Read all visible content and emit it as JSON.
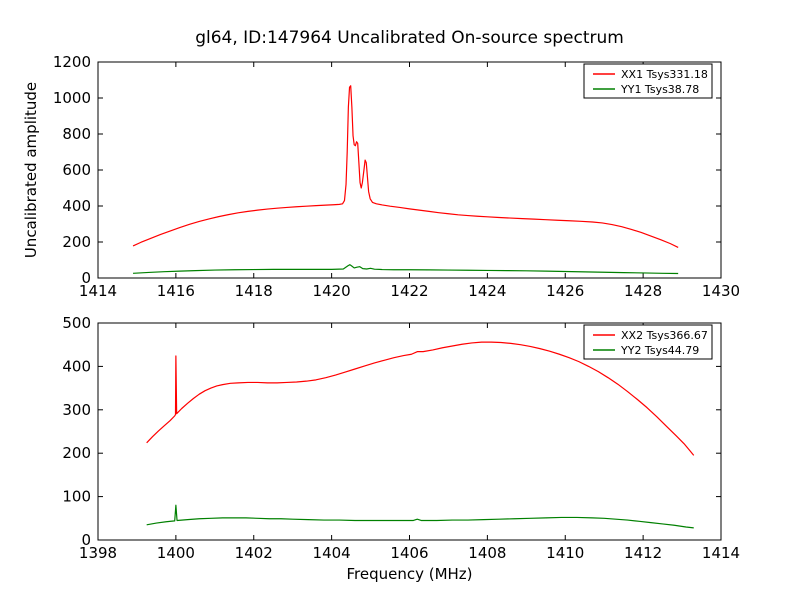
{
  "figure": {
    "title": "gl64, ID:147964 Uncalibrated On-source spectrum",
    "xlabel": "Frequency (MHz)",
    "ylabel": "Uncalibrated amplitude",
    "background_color": "#ffffff",
    "axis_color": "#000000",
    "accent_red": "#ff0000",
    "accent_green": "#008000"
  },
  "chart_data": [
    {
      "type": "line",
      "title": "",
      "xlabel": "",
      "ylabel": "Uncalibrated amplitude",
      "xlim": [
        1414,
        1430
      ],
      "ylim": [
        0,
        1200
      ],
      "xticks": [
        1414,
        1416,
        1418,
        1420,
        1422,
        1424,
        1426,
        1428,
        1430
      ],
      "yticks": [
        0,
        200,
        400,
        600,
        800,
        1000,
        1200
      ],
      "grid": false,
      "legend_position": "upper right",
      "series": [
        {
          "name": "XX1 Tsys331.18",
          "color": "#ff0000",
          "points": [
            [
              1414.9,
              178
            ],
            [
              1415.1,
              198
            ],
            [
              1415.35,
              220
            ],
            [
              1415.6,
              241
            ],
            [
              1415.85,
              261
            ],
            [
              1416.1,
              280
            ],
            [
              1416.35,
              298
            ],
            [
              1416.6,
              314
            ],
            [
              1416.85,
              328
            ],
            [
              1417.1,
              341
            ],
            [
              1417.35,
              352
            ],
            [
              1417.6,
              362
            ],
            [
              1417.85,
              370
            ],
            [
              1418.1,
              377
            ],
            [
              1418.35,
              383
            ],
            [
              1418.6,
              388
            ],
            [
              1418.85,
              392
            ],
            [
              1419.1,
              396
            ],
            [
              1419.35,
              399
            ],
            [
              1419.6,
              402
            ],
            [
              1419.85,
              405
            ],
            [
              1420.05,
              407
            ],
            [
              1420.2,
              409
            ],
            [
              1420.28,
              412
            ],
            [
              1420.33,
              430
            ],
            [
              1420.37,
              520
            ],
            [
              1420.4,
              700
            ],
            [
              1420.43,
              950
            ],
            [
              1420.46,
              1060
            ],
            [
              1420.49,
              1068
            ],
            [
              1420.52,
              950
            ],
            [
              1420.55,
              790
            ],
            [
              1420.58,
              740
            ],
            [
              1420.61,
              735
            ],
            [
              1420.64,
              757
            ],
            [
              1420.67,
              748
            ],
            [
              1420.7,
              640
            ],
            [
              1420.73,
              530
            ],
            [
              1420.76,
              500
            ],
            [
              1420.79,
              530
            ],
            [
              1420.83,
              600
            ],
            [
              1420.86,
              655
            ],
            [
              1420.89,
              640
            ],
            [
              1420.92,
              560
            ],
            [
              1420.95,
              480
            ],
            [
              1420.99,
              440
            ],
            [
              1421.05,
              420
            ],
            [
              1421.15,
              412
            ],
            [
              1421.3,
              406
            ],
            [
              1421.5,
              399
            ],
            [
              1421.75,
              392
            ],
            [
              1422.0,
              384
            ],
            [
              1422.25,
              377
            ],
            [
              1422.5,
              370
            ],
            [
              1422.75,
              363
            ],
            [
              1423.0,
              357
            ],
            [
              1423.25,
              351
            ],
            [
              1423.5,
              347
            ],
            [
              1423.75,
              343
            ],
            [
              1424.0,
              340
            ],
            [
              1424.3,
              336
            ],
            [
              1424.6,
              333
            ],
            [
              1424.9,
              330
            ],
            [
              1425.2,
              327
            ],
            [
              1425.5,
              324
            ],
            [
              1425.8,
              321
            ],
            [
              1426.1,
              318
            ],
            [
              1426.4,
              315
            ],
            [
              1426.7,
              311
            ],
            [
              1426.95,
              306
            ],
            [
              1427.2,
              297
            ],
            [
              1427.45,
              285
            ],
            [
              1427.7,
              270
            ],
            [
              1427.95,
              253
            ],
            [
              1428.2,
              233
            ],
            [
              1428.45,
              213
            ],
            [
              1428.7,
              191
            ],
            [
              1428.9,
              170
            ]
          ]
        },
        {
          "name": "YY1 Tsys38.78",
          "color": "#008000",
          "points": [
            [
              1414.9,
              26
            ],
            [
              1415.3,
              31
            ],
            [
              1415.7,
              35
            ],
            [
              1416.1,
              38
            ],
            [
              1416.5,
              41
            ],
            [
              1417.0,
              44
            ],
            [
              1417.5,
              46
            ],
            [
              1418.0,
              47
            ],
            [
              1418.5,
              48
            ],
            [
              1419.0,
              48
            ],
            [
              1419.5,
              48
            ],
            [
              1420.0,
              48
            ],
            [
              1420.3,
              50
            ],
            [
              1420.42,
              68
            ],
            [
              1420.47,
              74
            ],
            [
              1420.52,
              66
            ],
            [
              1420.58,
              56
            ],
            [
              1420.65,
              60
            ],
            [
              1420.72,
              63
            ],
            [
              1420.8,
              52
            ],
            [
              1420.9,
              50
            ],
            [
              1421.0,
              54
            ],
            [
              1421.1,
              49
            ],
            [
              1421.3,
              47
            ],
            [
              1421.6,
              46
            ],
            [
              1422.0,
              46
            ],
            [
              1422.5,
              45
            ],
            [
              1423.0,
              44
            ],
            [
              1423.5,
              43
            ],
            [
              1424.0,
              42
            ],
            [
              1424.5,
              41
            ],
            [
              1425.0,
              40
            ],
            [
              1425.5,
              38
            ],
            [
              1426.0,
              36
            ],
            [
              1426.5,
              34
            ],
            [
              1427.0,
              32
            ],
            [
              1427.5,
              30
            ],
            [
              1428.0,
              28
            ],
            [
              1428.5,
              26
            ],
            [
              1428.9,
              25
            ]
          ]
        }
      ]
    },
    {
      "type": "line",
      "title": "",
      "xlabel": "Frequency (MHz)",
      "ylabel": "",
      "xlim": [
        1398,
        1414
      ],
      "ylim": [
        0,
        500
      ],
      "xticks": [
        1398,
        1400,
        1402,
        1404,
        1406,
        1408,
        1410,
        1412,
        1414
      ],
      "yticks": [
        0,
        100,
        200,
        300,
        400,
        500
      ],
      "grid": false,
      "legend_position": "upper right",
      "series": [
        {
          "name": "XX2 Tsys366.67",
          "color": "#ff0000",
          "points": [
            [
              1399.25,
              224
            ],
            [
              1399.4,
              238
            ],
            [
              1399.55,
              251
            ],
            [
              1399.7,
              263
            ],
            [
              1399.85,
              275
            ],
            [
              1399.97,
              286
            ],
            [
              1399.99,
              289
            ],
            [
              1400.0,
              424
            ],
            [
              1400.02,
              291
            ],
            [
              1400.15,
              303
            ],
            [
              1400.3,
              315
            ],
            [
              1400.45,
              326
            ],
            [
              1400.6,
              336
            ],
            [
              1400.75,
              344
            ],
            [
              1400.9,
              350
            ],
            [
              1401.05,
              355
            ],
            [
              1401.2,
              358
            ],
            [
              1401.4,
              361
            ],
            [
              1401.6,
              362
            ],
            [
              1401.85,
              363
            ],
            [
              1402.1,
              363
            ],
            [
              1402.35,
              362
            ],
            [
              1402.6,
              362
            ],
            [
              1402.85,
              363
            ],
            [
              1403.1,
              364
            ],
            [
              1403.35,
              366
            ],
            [
              1403.6,
              369
            ],
            [
              1403.85,
              374
            ],
            [
              1404.1,
              380
            ],
            [
              1404.35,
              387
            ],
            [
              1404.6,
              394
            ],
            [
              1404.85,
              401
            ],
            [
              1405.1,
              408
            ],
            [
              1405.35,
              414
            ],
            [
              1405.6,
              420
            ],
            [
              1405.85,
              425
            ],
            [
              1406.05,
              428
            ],
            [
              1406.2,
              434
            ],
            [
              1406.35,
              434
            ],
            [
              1406.6,
              438
            ],
            [
              1406.85,
              443
            ],
            [
              1407.1,
              447
            ],
            [
              1407.35,
              451
            ],
            [
              1407.6,
              454
            ],
            [
              1407.85,
              456
            ],
            [
              1408.1,
              456
            ],
            [
              1408.35,
              455
            ],
            [
              1408.6,
              453
            ],
            [
              1408.85,
              450
            ],
            [
              1409.1,
              446
            ],
            [
              1409.35,
              441
            ],
            [
              1409.6,
              435
            ],
            [
              1409.85,
              428
            ],
            [
              1410.1,
              420
            ],
            [
              1410.35,
              411
            ],
            [
              1410.6,
              400
            ],
            [
              1410.85,
              388
            ],
            [
              1411.1,
              374
            ],
            [
              1411.35,
              359
            ],
            [
              1411.6,
              342
            ],
            [
              1411.85,
              324
            ],
            [
              1412.1,
              305
            ],
            [
              1412.35,
              284
            ],
            [
              1412.6,
              262
            ],
            [
              1412.85,
              240
            ],
            [
              1413.05,
              222
            ],
            [
              1413.2,
              206
            ],
            [
              1413.3,
              195
            ]
          ]
        },
        {
          "name": "YY2 Tsys44.79",
          "color": "#008000",
          "points": [
            [
              1399.25,
              35
            ],
            [
              1399.5,
              39
            ],
            [
              1399.75,
              42
            ],
            [
              1399.97,
              44
            ],
            [
              1400.0,
              80
            ],
            [
              1400.03,
              45
            ],
            [
              1400.3,
              47
            ],
            [
              1400.6,
              49
            ],
            [
              1400.9,
              50
            ],
            [
              1401.2,
              51
            ],
            [
              1401.5,
              51
            ],
            [
              1401.8,
              51
            ],
            [
              1402.1,
              50
            ],
            [
              1402.4,
              49
            ],
            [
              1402.7,
              49
            ],
            [
              1403.0,
              48
            ],
            [
              1403.4,
              47
            ],
            [
              1403.8,
              46
            ],
            [
              1404.2,
              46
            ],
            [
              1404.6,
              45
            ],
            [
              1405.0,
              45
            ],
            [
              1405.4,
              45
            ],
            [
              1405.8,
              45
            ],
            [
              1406.1,
              45
            ],
            [
              1406.2,
              48
            ],
            [
              1406.3,
              45
            ],
            [
              1406.7,
              45
            ],
            [
              1407.1,
              46
            ],
            [
              1407.5,
              46
            ],
            [
              1407.9,
              47
            ],
            [
              1408.3,
              48
            ],
            [
              1408.7,
              49
            ],
            [
              1409.1,
              50
            ],
            [
              1409.5,
              51
            ],
            [
              1409.9,
              52
            ],
            [
              1410.3,
              52
            ],
            [
              1410.7,
              51
            ],
            [
              1411.0,
              50
            ],
            [
              1411.3,
              48
            ],
            [
              1411.6,
              46
            ],
            [
              1411.9,
              43
            ],
            [
              1412.2,
              40
            ],
            [
              1412.5,
              37
            ],
            [
              1412.8,
              34
            ],
            [
              1413.1,
              30
            ],
            [
              1413.3,
              28
            ]
          ]
        }
      ]
    }
  ]
}
